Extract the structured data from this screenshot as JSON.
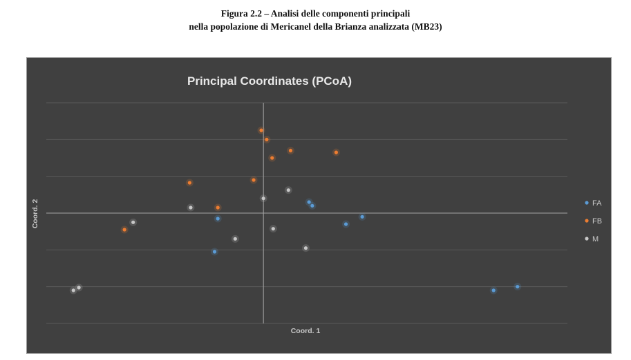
{
  "caption": {
    "line1": "Figura 2.2 – Analisi delle componenti principali",
    "line2": "nella popolazione di Mericanel della Brianza analizzata (MB23)"
  },
  "chart_data": {
    "type": "scatter",
    "title": "Principal Coordinates (PCoA)",
    "xlabel": "Coord. 1",
    "ylabel": "Coord. 2",
    "xlim": [
      -1.0,
      1.4
    ],
    "ylim": [
      -0.6,
      0.6
    ],
    "grid": "horizontal",
    "legend_position": "right",
    "series": [
      {
        "name": "FA",
        "color": "#5b9bd5",
        "points": [
          [
            0.21,
            0.06
          ],
          [
            0.225,
            0.04
          ],
          [
            -0.21,
            -0.03
          ],
          [
            0.38,
            -0.06
          ],
          [
            0.455,
            -0.02
          ],
          [
            -0.225,
            -0.21
          ],
          [
            1.06,
            -0.42
          ],
          [
            1.17,
            -0.4
          ]
        ]
      },
      {
        "name": "FB",
        "color": "#ed7d31",
        "points": [
          [
            -0.01,
            0.45
          ],
          [
            0.015,
            0.4
          ],
          [
            0.04,
            0.3
          ],
          [
            0.125,
            0.34
          ],
          [
            0.335,
            0.33
          ],
          [
            -0.045,
            0.18
          ],
          [
            -0.34,
            0.165
          ],
          [
            -0.21,
            0.03
          ],
          [
            -0.64,
            -0.09
          ]
        ]
      },
      {
        "name": "M",
        "color": "#c8c8c8",
        "points": [
          [
            0.0,
            0.08
          ],
          [
            0.115,
            0.125
          ],
          [
            -0.335,
            0.03
          ],
          [
            -0.6,
            -0.05
          ],
          [
            0.045,
            -0.085
          ],
          [
            -0.13,
            -0.14
          ],
          [
            0.195,
            -0.19
          ],
          [
            -0.875,
            -0.42
          ],
          [
            -0.85,
            -0.405
          ]
        ]
      }
    ]
  }
}
